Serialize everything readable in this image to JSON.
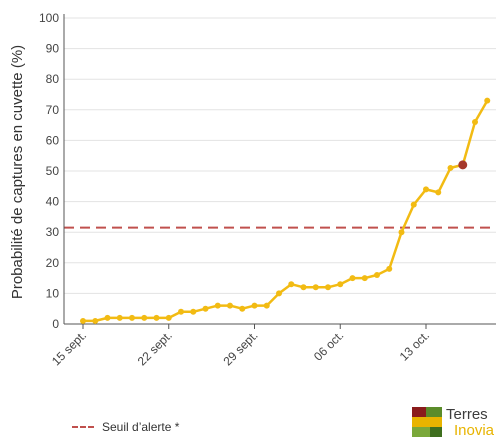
{
  "chart_data": {
    "type": "line",
    "ylabel": "Probabilité de captures en cuvette (%)",
    "xlabel": "",
    "title": "",
    "ylim": [
      0,
      100
    ],
    "yticks": [
      0,
      10,
      20,
      30,
      40,
      50,
      60,
      70,
      80,
      90,
      100
    ],
    "x_start": "15 sept.",
    "xticks": [
      {
        "label": "15 sept.",
        "day": 0
      },
      {
        "label": "22 sept.",
        "day": 7
      },
      {
        "label": "29 sept.",
        "day": 14
      },
      {
        "label": "06 oct.",
        "day": 21
      },
      {
        "label": "13 oct.",
        "day": 28
      }
    ],
    "grid": true,
    "series": [
      {
        "color": "#f2bb13",
        "values": [
          1,
          1,
          2,
          2,
          2,
          2,
          2,
          2,
          4,
          4,
          5,
          6,
          6,
          5,
          6,
          6,
          10,
          13,
          12,
          12,
          12,
          13,
          15,
          15,
          16,
          18,
          30,
          39,
          44,
          43,
          51,
          52,
          66,
          73
        ],
        "highlight_index": 31,
        "highlight_color": "#a5382c"
      }
    ],
    "threshold": {
      "value": 31.5,
      "color": "#c0504d",
      "style": "dashed"
    },
    "legend": {
      "position": "bottom-left",
      "entries": [
        {
          "label": "Seuil d’alerte *",
          "color": "#c0504d",
          "style": "dashed"
        }
      ]
    }
  },
  "logo": {
    "line1": "Terres",
    "line2": "Inovia"
  }
}
